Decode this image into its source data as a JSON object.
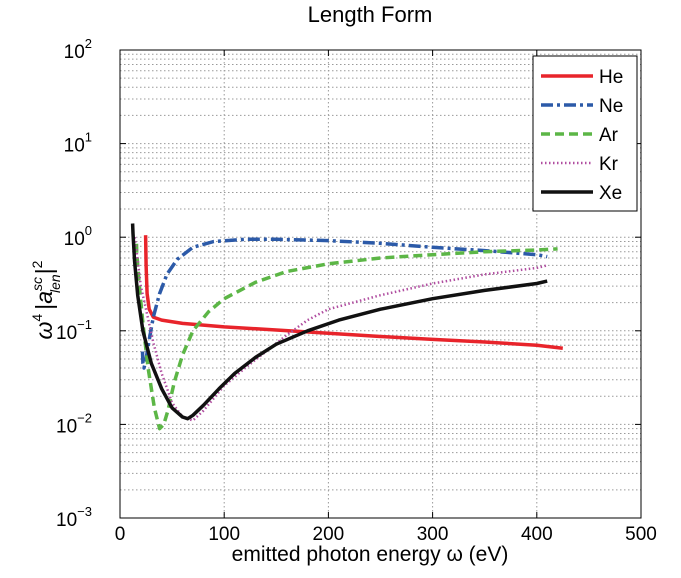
{
  "chart_data": {
    "type": "line",
    "title": "Length Form",
    "xlabel": "emitted photon energy ω (eV)",
    "ylabel": {
      "base": "ω",
      "exp": "4",
      "bar1": "|",
      "var": "a",
      "sup": "sc",
      "sub": "len",
      "bar2": "|",
      "power": "2"
    },
    "xlim": [
      0,
      500
    ],
    "ylim": [
      0.001,
      100
    ],
    "yscale": "log",
    "grid": true,
    "legend_position": "top-right",
    "x_ticks": [
      {
        "value": 0,
        "label": "0"
      },
      {
        "value": 100,
        "label": "100"
      },
      {
        "value": 200,
        "label": "200"
      },
      {
        "value": 300,
        "label": "300"
      },
      {
        "value": 400,
        "label": "400"
      },
      {
        "value": 500,
        "label": "500"
      }
    ],
    "y_ticks": [
      {
        "value": 0.001,
        "base": "10",
        "exp": "−3"
      },
      {
        "value": 0.01,
        "base": "10",
        "exp": "−2"
      },
      {
        "value": 0.1,
        "base": "10",
        "exp": "−1"
      },
      {
        "value": 1,
        "base": "10",
        "exp": "0"
      },
      {
        "value": 10,
        "base": "10",
        "exp": "1"
      },
      {
        "value": 100,
        "base": "10",
        "exp": "2"
      }
    ],
    "series": [
      {
        "name": "He",
        "color": "#e8242b",
        "dash": "",
        "width": 3.5,
        "x": [
          24.6,
          25,
          26,
          28,
          32,
          40,
          60,
          100,
          150,
          200,
          250,
          300,
          350,
          400,
          425
        ],
        "y": [
          1.05,
          0.5,
          0.25,
          0.17,
          0.14,
          0.13,
          0.12,
          0.11,
          0.102,
          0.094,
          0.087,
          0.081,
          0.076,
          0.07,
          0.065
        ]
      },
      {
        "name": "Ne",
        "color": "#2c5aa8",
        "dash": "12 4 3 4",
        "width": 3.5,
        "x": [
          21.6,
          22,
          23,
          25,
          28,
          32,
          38,
          45,
          55,
          70,
          90,
          120,
          150,
          200,
          250,
          300,
          350,
          400,
          410
        ],
        "y": [
          0.06,
          0.045,
          0.04,
          0.05,
          0.08,
          0.14,
          0.25,
          0.4,
          0.58,
          0.78,
          0.9,
          0.95,
          0.95,
          0.92,
          0.86,
          0.78,
          0.72,
          0.65,
          0.62
        ]
      },
      {
        "name": "Ar",
        "color": "#5cb646",
        "dash": "9 5",
        "width": 3.5,
        "x": [
          15.8,
          16,
          18,
          22,
          27,
          33,
          38,
          42,
          46,
          52,
          60,
          70,
          85,
          100,
          130,
          160,
          200,
          250,
          300,
          350,
          400,
          420
        ],
        "y": [
          0.85,
          0.7,
          0.35,
          0.12,
          0.04,
          0.015,
          0.009,
          0.01,
          0.014,
          0.028,
          0.055,
          0.1,
          0.16,
          0.22,
          0.33,
          0.43,
          0.52,
          0.6,
          0.65,
          0.7,
          0.73,
          0.75
        ]
      },
      {
        "name": "Kr",
        "color": "#b04ea0",
        "dash": "1.5 2.5",
        "width": 2.5,
        "x": [
          14,
          16,
          20,
          26,
          32,
          40,
          50,
          60,
          70,
          80,
          90,
          100,
          110,
          120,
          140,
          160,
          180,
          200,
          250,
          300,
          350,
          400,
          410
        ],
        "y": [
          1.0,
          0.7,
          0.3,
          0.15,
          0.075,
          0.035,
          0.017,
          0.012,
          0.011,
          0.014,
          0.019,
          0.026,
          0.032,
          0.04,
          0.06,
          0.09,
          0.13,
          0.17,
          0.24,
          0.32,
          0.4,
          0.47,
          0.5
        ]
      },
      {
        "name": "Xe",
        "color": "#111111",
        "dash": "",
        "width": 3.5,
        "x": [
          12.1,
          12.5,
          14,
          17,
          22,
          30,
          40,
          50,
          60,
          65,
          70,
          80,
          95,
          110,
          130,
          150,
          180,
          210,
          250,
          300,
          350,
          400,
          410
        ],
        "y": [
          1.4,
          1.1,
          0.55,
          0.24,
          0.1,
          0.045,
          0.024,
          0.015,
          0.012,
          0.0115,
          0.0125,
          0.016,
          0.024,
          0.035,
          0.052,
          0.072,
          0.1,
          0.13,
          0.17,
          0.22,
          0.27,
          0.32,
          0.34
        ]
      }
    ]
  }
}
